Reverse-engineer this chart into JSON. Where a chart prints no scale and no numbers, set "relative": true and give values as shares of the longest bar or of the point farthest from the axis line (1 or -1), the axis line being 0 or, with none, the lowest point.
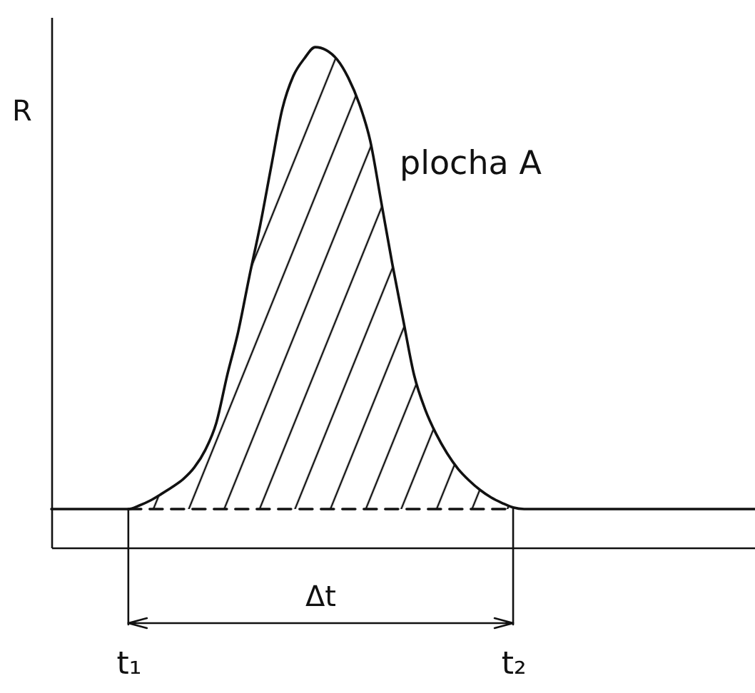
{
  "chart_data": {
    "type": "line",
    "relative": true,
    "ylabel": "R",
    "annotations": [
      "plocha A",
      "Δt"
    ],
    "categories": [
      null,
      null,
      null,
      null,
      null,
      null,
      null,
      "t₁",
      null,
      null,
      null,
      null,
      null,
      null,
      null,
      null,
      null,
      null,
      null,
      null,
      null,
      null,
      null,
      null,
      null,
      null,
      null,
      null,
      null,
      null,
      null,
      null,
      null,
      null,
      null,
      null,
      null,
      null,
      null,
      null,
      null,
      null,
      "t₂",
      null,
      null,
      null,
      null,
      null,
      null,
      null,
      null,
      null,
      null,
      null,
      null,
      null,
      null,
      null,
      null,
      null,
      null,
      null,
      null,
      null,
      null
    ],
    "series": [
      {
        "color": "#111111",
        "values": [
          0.077,
          0.077,
          0.077,
          0.077,
          0.077,
          0.077,
          0.077,
          0.077,
          0.084,
          0.094,
          0.107,
          0.121,
          0.137,
          0.16,
          0.195,
          0.249,
          0.345,
          0.432,
          0.541,
          0.645,
          0.762,
          0.876,
          0.942,
          0.977,
          1,
          0.994,
          0.975,
          0.939,
          0.887,
          0.813,
          0.691,
          0.568,
          0.455,
          0.344,
          0.276,
          0.227,
          0.188,
          0.157,
          0.134,
          0.115,
          0.1,
          0.089,
          0.08,
          0.077,
          0.077,
          0.077,
          0.077,
          0.077,
          0.077,
          0.077,
          0.077,
          0.077,
          0.077,
          0.077,
          0.077,
          0.077,
          0.077,
          0.077,
          0.077,
          0.077,
          0.077,
          0.077,
          0.077,
          0.077,
          0.077
        ],
        "lower": [
          null,
          null,
          null,
          null,
          null,
          null,
          null,
          0.077,
          0.077,
          0.077,
          0.077,
          0.077,
          0.077,
          0.077,
          0.077,
          0.077,
          0.077,
          0.077,
          0.077,
          0.077,
          0.077,
          0.077,
          0.077,
          0.077,
          0.077,
          0.077,
          0.077,
          0.077,
          0.077,
          0.077,
          0.077,
          0.077,
          0.077,
          0.077,
          0.077,
          0.077,
          0.077,
          0.077,
          0.077,
          0.077,
          0.077,
          0.077,
          0.077,
          null,
          null,
          null,
          null,
          null,
          null,
          null,
          null,
          null,
          null,
          null,
          null,
          null,
          null,
          null,
          null,
          null,
          null,
          null,
          null,
          null,
          null
        ],
        "upper": [
          null,
          null,
          null,
          null,
          null,
          null,
          null,
          0.077,
          0.084,
          0.094,
          0.107,
          0.121,
          0.137,
          0.16,
          0.195,
          0.249,
          0.345,
          0.432,
          0.541,
          0.645,
          0.762,
          0.876,
          0.942,
          0.977,
          1,
          0.994,
          0.975,
          0.939,
          0.887,
          0.813,
          0.691,
          0.568,
          0.455,
          0.344,
          0.276,
          0.227,
          0.188,
          0.157,
          0.134,
          0.115,
          0.1,
          0.089,
          0.08,
          null,
          null,
          null,
          null,
          null,
          null,
          null,
          null,
          null,
          null,
          null,
          null,
          null,
          null,
          null,
          null,
          null,
          null,
          null,
          null,
          null,
          null
        ]
      },
      {
        "type": "line",
        "line_style": "dashed",
        "color": "#111111",
        "values": [
          null,
          null,
          null,
          null,
          null,
          null,
          null,
          0.077,
          0.077,
          0.077,
          0.077,
          0.077,
          0.077,
          0.077,
          0.077,
          0.077,
          0.077,
          0.077,
          0.077,
          0.077,
          0.077,
          0.077,
          0.077,
          0.077,
          0.077,
          0.077,
          0.077,
          0.077,
          0.077,
          0.077,
          0.077,
          0.077,
          0.077,
          0.077,
          0.077,
          0.077,
          0.077,
          0.077,
          0.077,
          0.077,
          0.077,
          0.077,
          0.077,
          null,
          null,
          null,
          null,
          null,
          null,
          null,
          null,
          null,
          null,
          null,
          null,
          null,
          null,
          null,
          null,
          null,
          null,
          null,
          null,
          null,
          null
        ]
      }
    ]
  }
}
